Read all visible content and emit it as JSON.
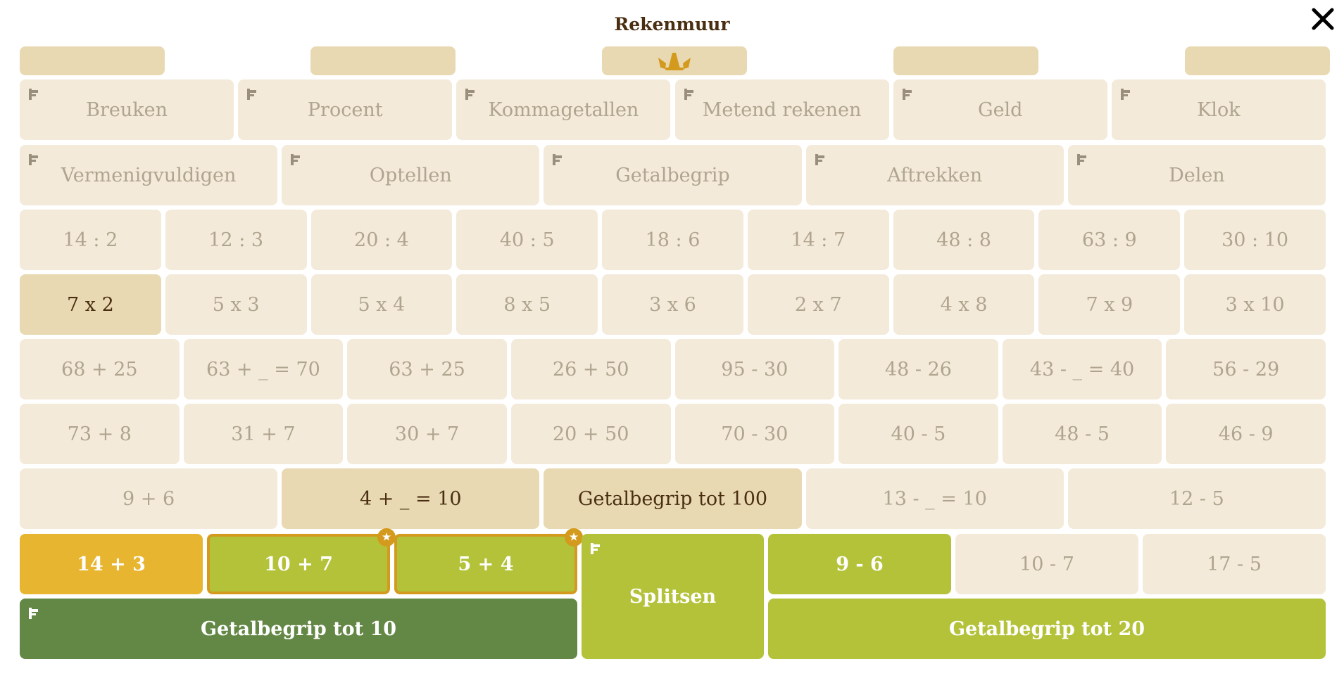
{
  "title": "Rekenmuur",
  "top_tabs": [
    {
      "icon": ""
    },
    {
      "icon": ""
    },
    {
      "icon": "crown-icon"
    },
    {
      "icon": ""
    },
    {
      "icon": ""
    }
  ],
  "rows": [
    {
      "tiles": [
        {
          "label": "Breuken",
          "flag": true
        },
        {
          "label": "Procent",
          "flag": true
        },
        {
          "label": "Kommagetallen",
          "flag": true
        },
        {
          "label": "Metend rekenen",
          "flag": true
        },
        {
          "label": "Geld",
          "flag": true
        },
        {
          "label": "Klok",
          "flag": true
        }
      ]
    },
    {
      "tiles": [
        {
          "label": "Vermenigvuldigen",
          "flag": true
        },
        {
          "label": "Optellen",
          "flag": true
        },
        {
          "label": "Getalbegrip",
          "flag": true
        },
        {
          "label": "Aftrekken",
          "flag": true
        },
        {
          "label": "Delen",
          "flag": true
        }
      ]
    },
    {
      "tiles": [
        {
          "label": "14 : 2"
        },
        {
          "label": "12 : 3"
        },
        {
          "label": "20 : 4"
        },
        {
          "label": "40 : 5"
        },
        {
          "label": "18 : 6"
        },
        {
          "label": "14 : 7"
        },
        {
          "label": "48 : 8"
        },
        {
          "label": "63 : 9"
        },
        {
          "label": "30 : 10"
        }
      ]
    },
    {
      "tiles": [
        {
          "label": "7 x 2",
          "state": "active"
        },
        {
          "label": "5 x 3"
        },
        {
          "label": "5 x 4"
        },
        {
          "label": "8 x 5"
        },
        {
          "label": "3 x 6"
        },
        {
          "label": "2 x 7"
        },
        {
          "label": "4 x 8"
        },
        {
          "label": "7 x 9"
        },
        {
          "label": "3 x 10"
        }
      ]
    },
    {
      "tiles": [
        {
          "label": "68 + 25"
        },
        {
          "label": "63 + _ = 70"
        },
        {
          "label": "63 + 25"
        },
        {
          "label": "26 + 50"
        },
        {
          "label": "95 - 30"
        },
        {
          "label": "48 - 26"
        },
        {
          "label": "43 - _ = 40"
        },
        {
          "label": "56 - 29"
        }
      ]
    },
    {
      "tiles": [
        {
          "label": "73 + 8"
        },
        {
          "label": "31 + 7"
        },
        {
          "label": "30 + 7"
        },
        {
          "label": "20 + 50"
        },
        {
          "label": "70 - 30"
        },
        {
          "label": "40 - 5"
        },
        {
          "label": "48 - 5"
        },
        {
          "label": "46 - 9"
        }
      ]
    },
    {
      "tiles": [
        {
          "label": "9 + 6"
        },
        {
          "label": "4 + _ = 10",
          "state": "active"
        },
        {
          "label": "Getalbegrip tot 100",
          "state": "active"
        },
        {
          "label": "13 - _ = 10"
        },
        {
          "label": "12 - 5"
        }
      ]
    }
  ],
  "bottom": {
    "row8": [
      {
        "label": "14 + 3",
        "state": "hl-yellow"
      },
      {
        "label": "10 + 7",
        "state": "hl-lime-b",
        "star": true
      },
      {
        "label": "5 + 4",
        "state": "hl-lime-b",
        "star": true
      },
      {
        "label": "9 - 6",
        "state": "hl-lime"
      },
      {
        "label": "10 - 7"
      },
      {
        "label": "17 - 5"
      }
    ],
    "splitsen": {
      "label": "Splitsen",
      "state": "hl-lime",
      "flag": true
    },
    "row9": [
      {
        "label": "Getalbegrip tot 10",
        "state": "hl-dark",
        "flag": true
      },
      {
        "label": "Getalbegrip tot 20",
        "state": "hl-lime"
      }
    ]
  },
  "colors": {
    "tile": "#f3eada",
    "tile_active": "#e8d9b2",
    "yellow": "#e8b530",
    "lime": "#b4c23a",
    "dark_green": "#638744",
    "gold_border": "#d49a1e",
    "text_dark": "#4a2e12"
  }
}
